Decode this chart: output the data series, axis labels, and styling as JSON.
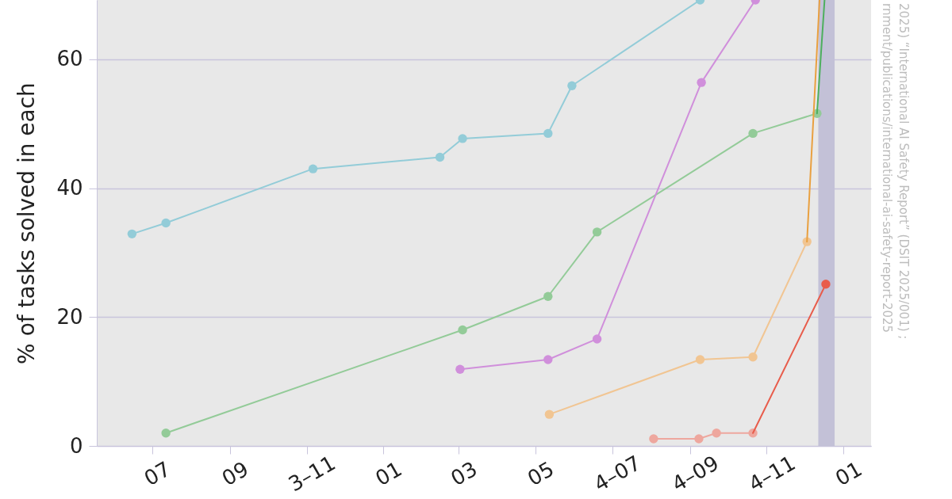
{
  "chart_data": {
    "type": "line",
    "ylabel": "% of tasks solved in each",
    "xlim": [
      "2023-05-18",
      "2025-01-23"
    ],
    "ylim": [
      0,
      69.2
    ],
    "yticks": [
      0,
      20,
      40,
      60
    ],
    "xticks": [
      {
        "value": "2023-07-01",
        "label": "07"
      },
      {
        "value": "2023-09-01",
        "label": "09"
      },
      {
        "value": "2023-11-01",
        "label": "3–11"
      },
      {
        "value": "2024-01-01",
        "label": "01"
      },
      {
        "value": "2024-03-01",
        "label": "03"
      },
      {
        "value": "2024-05-01",
        "label": "05"
      },
      {
        "value": "2024-07-01",
        "label": "4–07"
      },
      {
        "value": "2024-09-01",
        "label": "4–09"
      },
      {
        "value": "2024-11-01",
        "label": "4–11"
      },
      {
        "value": "2025-01-01",
        "label": "01"
      }
    ],
    "grid": "y",
    "marker": "circle",
    "bands": [
      {
        "axis": "x",
        "from": "2024-12-12",
        "to": "2024-12-25",
        "color": "#c3c1d7"
      }
    ],
    "series": [
      {
        "color": "#93ccd8",
        "x": [
          "2023-06-15",
          "2023-07-12",
          "2023-11-06",
          "2024-02-15",
          "2024-03-04",
          "2024-05-11",
          "2024-05-30",
          "2024-09-09"
        ],
        "values": [
          32.9,
          34.6,
          43.0,
          44.8,
          47.7,
          48.5,
          55.9,
          69.2
        ]
      },
      {
        "color": "#93cb98",
        "x": [
          "2023-07-12",
          "2024-03-04",
          "2024-05-11",
          "2024-06-19",
          "2024-10-21",
          "2024-12-11"
        ],
        "values": [
          2.0,
          18.0,
          23.2,
          33.2,
          48.5,
          51.6
        ]
      },
      {
        "color": "#d08fdb",
        "x": [
          "2024-03-02",
          "2024-05-11",
          "2024-06-19",
          "2024-09-10",
          "2024-10-23"
        ],
        "values": [
          11.9,
          13.4,
          16.6,
          56.4,
          69.2
        ]
      },
      {
        "color": "#f1c592",
        "x": [
          "2024-05-12",
          "2024-09-09",
          "2024-10-21",
          "2024-12-03"
        ],
        "values": [
          4.9,
          13.4,
          13.8,
          31.7
        ]
      },
      {
        "color": "#eea79e",
        "x": [
          "2024-08-03",
          "2024-09-08",
          "2024-09-22",
          "2024-10-21"
        ],
        "values": [
          1.1,
          1.1,
          2.0,
          2.0
        ]
      },
      {
        "color": "#e9a040",
        "marker": "none",
        "x": [
          "2024-12-03",
          "2024-12-13"
        ],
        "values": [
          31.7,
          69.2
        ]
      },
      {
        "color": "#4daf5e",
        "marker": "none",
        "x": [
          "2024-12-11",
          "2024-12-17"
        ],
        "values": [
          51.6,
          69.2
        ]
      },
      {
        "color": "#e85c4b",
        "marker": "none",
        "x": [
          "2024-10-21",
          "2024-12-18"
        ],
        "values": [
          2.0,
          25.1
        ]
      },
      {
        "type": "scatter",
        "color": "#e85c4b",
        "marker": "circle",
        "x": [
          "2024-12-18"
        ],
        "values": [
          25.1
        ]
      }
    ],
    "annotations": [
      "2025) “International AI Safety Report” (DSIT 2025/001) ;",
      "rnment/publications/international-ai-safety-report-2025"
    ]
  }
}
